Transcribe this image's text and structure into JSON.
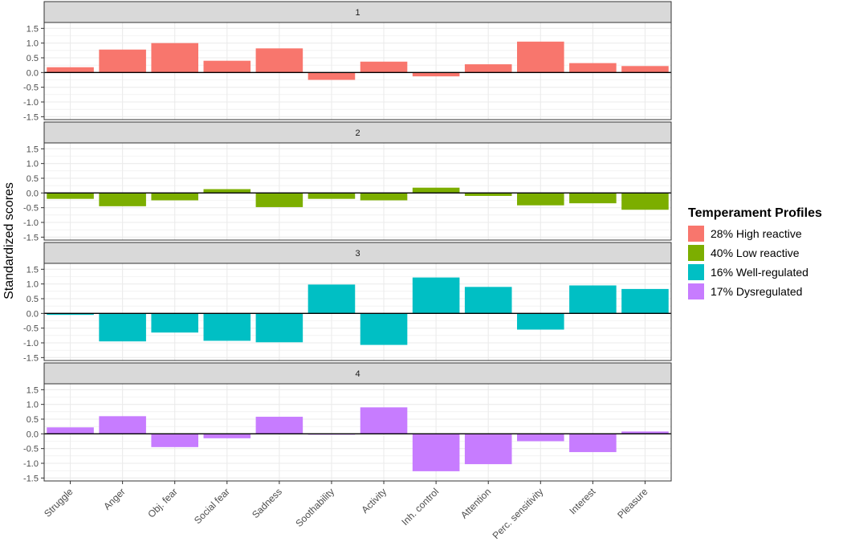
{
  "chart_data": {
    "type": "bar",
    "title": "",
    "xlabel": "",
    "ylabel": "Standardized scores",
    "ylim": [
      -1.6,
      1.7
    ],
    "yticks": [
      1.5,
      1.0,
      0.5,
      0.0,
      -0.5,
      -1.0,
      -1.5
    ],
    "ytick_labels": [
      "1.5",
      "1.0",
      "0.5",
      "0.0",
      "-0.5",
      "-1.0",
      "-1.5"
    ],
    "categories": [
      "Struggle",
      "Anger",
      "Obj. fear",
      "Social fear",
      "Sadness",
      "Soothability",
      "Activity",
      "Inh. control",
      "Attention",
      "Perc. sensitivity",
      "Interest",
      "Pleasure"
    ],
    "legend": {
      "title": "Temperament Profiles",
      "position": "right"
    },
    "panels": [
      {
        "strip": "1",
        "name": "28% High reactive",
        "color": "#F8766D",
        "values": [
          0.18,
          0.78,
          1.0,
          0.4,
          0.82,
          -0.25,
          0.37,
          -0.13,
          0.28,
          1.05,
          0.32,
          0.22
        ]
      },
      {
        "strip": "2",
        "name": "40% Low reactive",
        "color": "#7CAE00",
        "values": [
          -0.2,
          -0.45,
          -0.25,
          0.13,
          -0.48,
          -0.2,
          -0.25,
          0.18,
          -0.1,
          -0.42,
          -0.35,
          -0.57
        ]
      },
      {
        "strip": "3",
        "name": "16% Well-regulated",
        "color": "#00BFC4",
        "values": [
          -0.05,
          -0.95,
          -0.65,
          -0.93,
          -0.98,
          0.98,
          -1.07,
          1.22,
          0.9,
          -0.55,
          0.95,
          0.83
        ]
      },
      {
        "strip": "4",
        "name": "17% Dysregulated",
        "color": "#C77CFF",
        "values": [
          0.22,
          0.6,
          -0.45,
          -0.15,
          0.58,
          -0.03,
          0.9,
          -1.27,
          -1.03,
          -0.25,
          -0.62,
          0.08
        ]
      }
    ]
  },
  "colors": {
    "panel_background": "#ffffff",
    "grid": "#ebebeb",
    "strip_fill": "#d9d9d9",
    "strip_border": "#333333",
    "panel_border": "#333333",
    "zero_line": "#000000"
  }
}
